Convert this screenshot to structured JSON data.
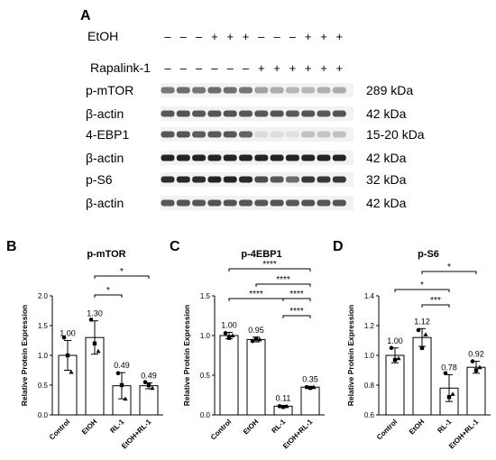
{
  "panel_a": {
    "label": "A",
    "treatments": [
      {
        "name": "EtOH",
        "signs": [
          "–",
          "–",
          "–",
          "+",
          "+",
          "+",
          "–",
          "–",
          "–",
          "+",
          "+",
          "+"
        ]
      },
      {
        "name": "Rapalink-1",
        "signs": [
          "–",
          "–",
          "–",
          "–",
          "–",
          "–",
          "+",
          "+",
          "+",
          "+",
          "+",
          "+"
        ]
      }
    ],
    "blots": [
      {
        "target": "p-mTOR",
        "size": "289 kDa",
        "lanes": [
          0.55,
          0.6,
          0.55,
          0.6,
          0.58,
          0.55,
          0.35,
          0.3,
          0.25,
          0.25,
          0.28,
          0.3
        ]
      },
      {
        "target": "β-actin",
        "size": "42 kDa",
        "lanes": [
          0.7,
          0.72,
          0.7,
          0.72,
          0.72,
          0.7,
          0.7,
          0.72,
          0.7,
          0.72,
          0.7,
          0.72
        ]
      },
      {
        "target": "4-EBP1",
        "size": "15-20 kDa",
        "lanes": [
          0.7,
          0.72,
          0.68,
          0.7,
          0.7,
          0.65,
          0.08,
          0.06,
          0.05,
          0.2,
          0.18,
          0.2
        ]
      },
      {
        "target": "β-actin",
        "size": "42 kDa",
        "lanes": [
          0.95,
          0.95,
          0.95,
          0.95,
          0.95,
          0.95,
          0.95,
          0.95,
          0.95,
          0.95,
          0.95,
          0.95
        ]
      },
      {
        "target": "p-S6",
        "size": "32 kDa",
        "lanes": [
          0.9,
          0.92,
          0.9,
          0.95,
          0.95,
          0.92,
          0.75,
          0.7,
          0.6,
          0.85,
          0.85,
          0.85
        ]
      },
      {
        "target": "β-actin",
        "size": "42 kDa",
        "lanes": [
          0.7,
          0.72,
          0.7,
          0.72,
          0.72,
          0.7,
          0.7,
          0.72,
          0.7,
          0.72,
          0.7,
          0.72
        ]
      }
    ]
  },
  "chart_data": [
    {
      "type": "bar",
      "panel": "B",
      "title": "p-mTOR",
      "ylabel": "Relative Protein Expression",
      "categories": [
        "Control",
        "EtOH",
        "RL-1",
        "EtOH+RL-1"
      ],
      "values": [
        1.0,
        1.3,
        0.49,
        0.49
      ],
      "value_labels": [
        "1.00",
        "1.30",
        "0.49",
        "0.49"
      ],
      "error": [
        0.25,
        0.28,
        0.22,
        0.05
      ],
      "points": [
        [
          1.3,
          1.0,
          0.72
        ],
        [
          1.6,
          1.2,
          1.07
        ],
        [
          0.7,
          0.5,
          0.27
        ],
        [
          0.55,
          0.5,
          0.45
        ]
      ],
      "ylim": [
        0,
        2.0
      ],
      "yticks": [
        "0.0",
        "0.5",
        "1.0",
        "1.5",
        "2.0"
      ],
      "significance": [
        {
          "from": 1,
          "to": 2,
          "label": "*"
        },
        {
          "from": 1,
          "to": 3,
          "label": "*"
        }
      ]
    },
    {
      "type": "bar",
      "panel": "C",
      "title": "p-4EBP1",
      "ylabel": "Relative Protein Expression",
      "categories": [
        "Control",
        "EtOH",
        "RL-1",
        "EtOH+RL-1"
      ],
      "values": [
        1.0,
        0.95,
        0.11,
        0.35
      ],
      "value_labels": [
        "1.00",
        "0.95",
        "0.11",
        "0.35"
      ],
      "error": [
        0.04,
        0.03,
        0.01,
        0.01
      ],
      "points": [
        [
          1.03,
          0.97,
          1.0
        ],
        [
          0.93,
          0.96,
          0.95
        ],
        [
          0.11,
          0.1,
          0.11
        ],
        [
          0.35,
          0.34,
          0.35
        ]
      ],
      "ylim": [
        0,
        1.5
      ],
      "yticks": [
        "0.0",
        "0.5",
        "1.0",
        "1.5"
      ],
      "significance": [
        {
          "from": 2,
          "to": 3,
          "label": "****"
        },
        {
          "from": 0,
          "to": 2,
          "label": "****"
        },
        {
          "from": 2,
          "to": 3,
          "label": "****"
        },
        {
          "from": 1,
          "to": 3,
          "label": "****"
        },
        {
          "from": 0,
          "to": 3,
          "label": "****"
        }
      ]
    },
    {
      "type": "bar",
      "panel": "D",
      "title": "p-S6",
      "ylabel": "Relative Protein Expression",
      "categories": [
        "Control",
        "EtOH",
        "RL-1",
        "EtOH+RL-1"
      ],
      "values": [
        1.0,
        1.12,
        0.78,
        0.92
      ],
      "value_labels": [
        "1.00",
        "1.12",
        "0.78",
        "0.92"
      ],
      "error": [
        0.05,
        0.06,
        0.09,
        0.04
      ],
      "points": [
        [
          1.05,
          0.97,
          0.98
        ],
        [
          1.17,
          1.05,
          1.14
        ],
        [
          0.88,
          0.72,
          0.74
        ],
        [
          0.96,
          0.9,
          0.92
        ]
      ],
      "ylim": [
        0.6,
        1.4
      ],
      "yticks": [
        "0.6",
        "0.8",
        "1.0",
        "1.2",
        "1.4"
      ],
      "significance": [
        {
          "from": 1,
          "to": 2,
          "label": "***"
        },
        {
          "from": 0,
          "to": 2,
          "label": "*"
        },
        {
          "from": 1,
          "to": 3,
          "label": "*"
        }
      ]
    }
  ]
}
